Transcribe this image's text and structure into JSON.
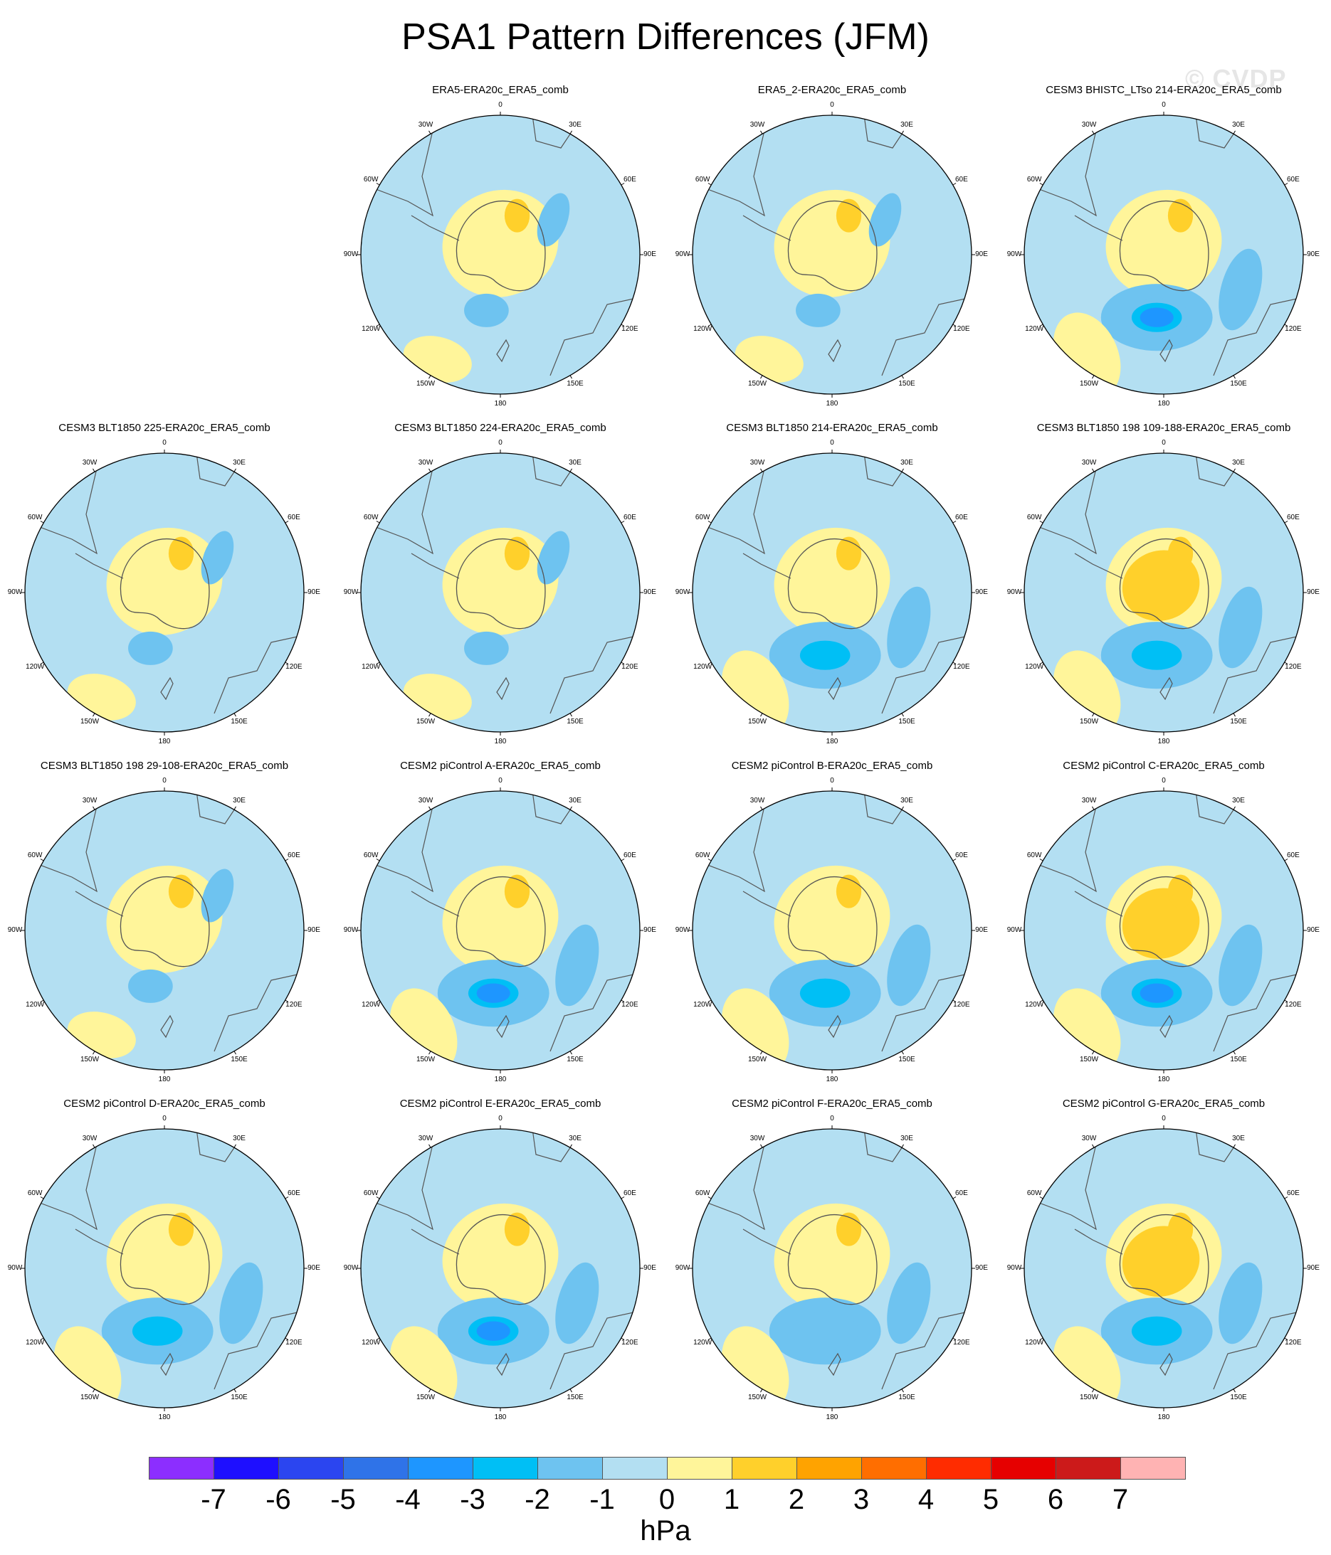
{
  "title": "PSA1 Pattern Differences (JFM)",
  "watermark": "© CVDP",
  "units": "hPa",
  "lon_labels": [
    "0",
    "30E",
    "60E",
    "90E",
    "120E",
    "150E",
    "180",
    "150W",
    "120W",
    "90W",
    "60W",
    "30W"
  ],
  "colorbar": {
    "colors": [
      "#8c2eff",
      "#1e0fff",
      "#2b45f0",
      "#2f73e8",
      "#1e96ff",
      "#00bff5",
      "#6ec3f0",
      "#b3dff2",
      "#fff59a",
      "#ffd02b",
      "#ffa300",
      "#ff6e00",
      "#ff2c00",
      "#e60000",
      "#cc1a1a",
      "#ffb3b3"
    ],
    "tick_labels": [
      "-7",
      "-6",
      "-5",
      "-4",
      "-3",
      "-2",
      "-1",
      "0",
      "1",
      "2",
      "3",
      "4",
      "5",
      "6",
      "7"
    ]
  },
  "panels": [
    {
      "name": "ERA5-ERA20c_ERA5_comb",
      "pattern": "weak",
      "ant_level": 1
    },
    {
      "name": "ERA5_2-ERA20c_ERA5_comb",
      "pattern": "weak",
      "ant_level": 1
    },
    {
      "name": "CESM3 BHISTC_LTso 214-ERA20c_ERA5_comb",
      "pattern": "dipole",
      "ant_level": 1,
      "low_level": -4
    },
    {
      "name": "CESM3 BLT1850 225-ERA20c_ERA5_comb",
      "pattern": "weak",
      "ant_level": 1
    },
    {
      "name": "CESM3 BLT1850 224-ERA20c_ERA5_comb",
      "pattern": "weak",
      "ant_level": 1
    },
    {
      "name": "CESM3 BLT1850 214-ERA20c_ERA5_comb",
      "pattern": "dipole",
      "ant_level": 1,
      "low_level": -3
    },
    {
      "name": "CESM3 BLT1850 198 109-188-ERA20c_ERA5_comb",
      "pattern": "dipole",
      "ant_level": 2,
      "low_level": -3
    },
    {
      "name": "CESM3 BLT1850 198 29-108-ERA20c_ERA5_comb",
      "pattern": "weak",
      "ant_level": 1
    },
    {
      "name": "CESM2 piControl A-ERA20c_ERA5_comb",
      "pattern": "dipole",
      "ant_level": 1,
      "low_level": -4
    },
    {
      "name": "CESM2 piControl B-ERA20c_ERA5_comb",
      "pattern": "dipole",
      "ant_level": 1,
      "low_level": -3
    },
    {
      "name": "CESM2 piControl C-ERA20c_ERA5_comb",
      "pattern": "dipole",
      "ant_level": 2,
      "low_level": -4
    },
    {
      "name": "CESM2 piControl D-ERA20c_ERA5_comb",
      "pattern": "dipole",
      "ant_level": 1,
      "low_level": -3
    },
    {
      "name": "CESM2 piControl E-ERA20c_ERA5_comb",
      "pattern": "dipole",
      "ant_level": 1,
      "low_level": -4
    },
    {
      "name": "CESM2 piControl F-ERA20c_ERA5_comb",
      "pattern": "dipole",
      "ant_level": 1,
      "low_level": -2
    },
    {
      "name": "CESM2 piControl G-ERA20c_ERA5_comb",
      "pattern": "dipole",
      "ant_level": 2,
      "low_level": -3
    }
  ]
}
